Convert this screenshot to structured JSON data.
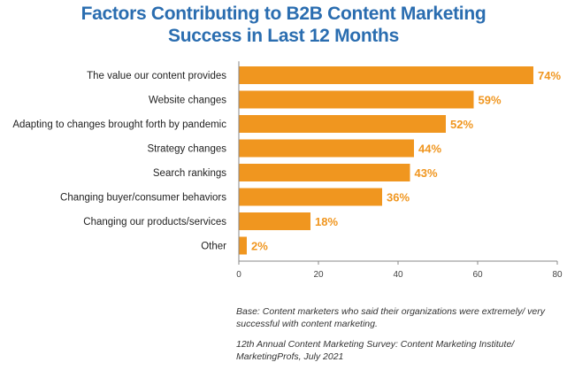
{
  "title_line1": "Factors Contributing to B2B Content Marketing",
  "title_line2": "Success in Last 12 Months",
  "chart_data": {
    "type": "bar",
    "orientation": "horizontal",
    "categories": [
      "The value our content provides",
      "Website changes",
      "Adapting to changes brought forth by pandemic",
      "Strategy changes",
      "Search rankings",
      "Changing buyer/consumer behaviors",
      "Changing our products/services",
      "Other"
    ],
    "values": [
      74,
      59,
      52,
      44,
      43,
      36,
      18,
      2
    ],
    "value_labels": [
      "74%",
      "59%",
      "52%",
      "44%",
      "43%",
      "36%",
      "18%",
      "2%"
    ],
    "xticks": [
      0,
      20,
      40,
      60,
      80
    ],
    "xlim": [
      0,
      80
    ],
    "grid": false,
    "bar_color": "#f0961f",
    "label_color": "#f0961f"
  },
  "notes": {
    "base": "Base: Content marketers who said their organizations were extremely/ very successful with content marketing.",
    "source": "12th Annual Content Marketing Survey: Content Marketing Institute/ MarketingProfs, July 2021"
  },
  "colors": {
    "title": "#2a6db0",
    "axis": "#888888",
    "text": "#222222"
  }
}
